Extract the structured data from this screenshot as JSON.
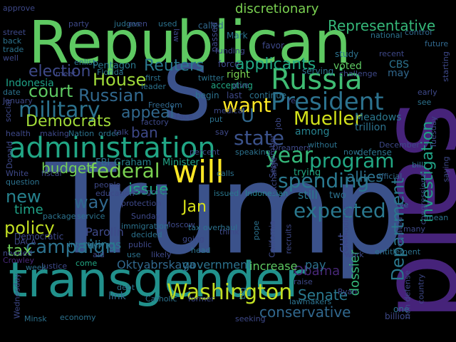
{
  "word_cloud": {
    "background": "#000000",
    "words": [
      {
        "text": "said",
        "color": "#46237a"
      },
      {
        "text": "Trump",
        "color": "#3b528b"
      },
      {
        "text": "Republican",
        "color": "#5ec962"
      },
      {
        "text": "transgender",
        "color": "#21918c"
      },
      {
        "text": "S",
        "color": "#3b528b"
      },
      {
        "text": "will",
        "color": "#fde725"
      },
      {
        "text": "administration",
        "color": "#21a685"
      },
      {
        "text": "Russia",
        "color": "#3fbc73"
      },
      {
        "text": "President",
        "color": "#2c728e"
      },
      {
        "text": "Washington",
        "color": "#c2df23"
      },
      {
        "text": "Department",
        "color": "#2a788e"
      },
      {
        "text": "investigation",
        "color": "#20a386"
      },
      {
        "text": "Representative",
        "color": "#35b779"
      },
      {
        "text": "military",
        "color": "#2c728e"
      },
      {
        "text": "federal",
        "color": "#7ad151"
      },
      {
        "text": "Mueller",
        "color": "#d2e21b"
      },
      {
        "text": "program",
        "color": "#22a884"
      },
      {
        "text": "want",
        "color": "#fde725"
      },
      {
        "text": "state",
        "color": "#3b528b"
      },
      {
        "text": "year",
        "color": "#35b779"
      },
      {
        "text": "spending",
        "color": "#2a788e"
      },
      {
        "text": "campaign",
        "color": "#2c728e"
      },
      {
        "text": "conservative",
        "color": "#31688e"
      },
      {
        "text": "Reuters",
        "color": "#2a788e"
      },
      {
        "text": "House",
        "color": "#a0da39"
      },
      {
        "text": "Russian",
        "color": "#31688e"
      },
      {
        "text": "court",
        "color": "#5ec962"
      },
      {
        "text": "Democrats",
        "color": "#a0da39"
      },
      {
        "text": "appeal",
        "color": "#31688e"
      },
      {
        "text": "election",
        "color": "#3e4989"
      },
      {
        "text": "budget",
        "color": "#73d056"
      },
      {
        "text": "expected",
        "color": "#2a788e"
      },
      {
        "text": "policy",
        "color": "#c2df23"
      },
      {
        "text": "new",
        "color": "#26828e"
      },
      {
        "text": "way",
        "color": "#31688e"
      },
      {
        "text": "issue",
        "color": "#22a884"
      },
      {
        "text": "Jan",
        "color": "#d8e219"
      },
      {
        "text": "tax",
        "color": "#6ece58"
      },
      {
        "text": "Senate",
        "color": "#2a788e"
      },
      {
        "text": "ban",
        "color": "#3e4989"
      },
      {
        "text": "time",
        "color": "#1fa187"
      },
      {
        "text": "applicants",
        "color": "#22a884"
      },
      {
        "text": "U",
        "color": "#31688e"
      },
      {
        "text": "Obama",
        "color": "#482878"
      },
      {
        "text": "dossier",
        "color": "#35b779"
      },
      {
        "text": "cut",
        "color": "#3e4989"
      },
      {
        "text": "Oktyabrskaya",
        "color": "#31688e"
      },
      {
        "text": "government",
        "color": "#2c728e"
      },
      {
        "text": "increase",
        "color": "#5ec962"
      },
      {
        "text": "Indonesia",
        "color": "#1fa187"
      },
      {
        "text": "Pentagon",
        "color": "#2a788e"
      },
      {
        "text": "Graham",
        "color": "#26828e"
      },
      {
        "text": "Minister",
        "color": "#20a386"
      },
      {
        "text": "FBI",
        "color": "#2c728e"
      },
      {
        "text": "Parolin",
        "color": "#3e4989"
      },
      {
        "text": "rulings",
        "color": "#2a788e"
      },
      {
        "text": "link",
        "color": "#31688e"
      },
      {
        "text": "pay",
        "color": "#2c728e"
      },
      {
        "text": "still",
        "color": "#2a788e"
      },
      {
        "text": "two",
        "color": "#2c728e"
      },
      {
        "text": "trying",
        "color": "#22a884"
      },
      {
        "text": "allies",
        "color": "#2c728e"
      },
      {
        "text": "among",
        "color": "#26828e"
      },
      {
        "text": "trillion",
        "color": "#2c728e"
      },
      {
        "text": "Meadows",
        "color": "#2a788e"
      },
      {
        "text": "Democratic",
        "color": "#3e4989"
      },
      {
        "text": "discretionary",
        "color": "#7ad151"
      },
      {
        "text": "voted",
        "color": "#5ec962"
      },
      {
        "text": "CBS",
        "color": "#2c728e"
      },
      {
        "text": "may",
        "color": "#31688e"
      },
      {
        "text": "called",
        "color": "#31688e"
      },
      {
        "text": "favor",
        "color": "#3e4989"
      },
      {
        "text": "Mark",
        "color": "#2c728e"
      },
      {
        "text": "national",
        "color": "#2c728e"
      },
      {
        "text": "control",
        "color": "#31688e"
      },
      {
        "text": "future",
        "color": "#31688e"
      },
      {
        "text": "study",
        "color": "#2c728e"
      },
      {
        "text": "serving",
        "color": "#2c728e"
      },
      {
        "text": "accepting",
        "color": "#22a884"
      },
      {
        "text": "right",
        "color": "#7ad151"
      },
      {
        "text": "last",
        "color": "#3e4989"
      },
      {
        "text": "continue",
        "color": "#2c728e"
      },
      {
        "text": "begin",
        "color": "#2c728e"
      },
      {
        "text": "force",
        "color": "#3e4989"
      },
      {
        "text": "leader",
        "color": "#2c728e"
      },
      {
        "text": "first",
        "color": "#2c728e"
      },
      {
        "text": "Florida",
        "color": "#2c728e"
      },
      {
        "text": "enlist",
        "color": "#2c728e"
      },
      {
        "text": "factory",
        "color": "#3e4989"
      },
      {
        "text": "Freedom",
        "color": "#31688e"
      },
      {
        "text": "Face",
        "color": "#3e4989"
      },
      {
        "text": "put",
        "color": "#2c728e"
      },
      {
        "text": "say",
        "color": "#3e4989"
      },
      {
        "text": "speaking",
        "color": "#2c728e"
      },
      {
        "text": "calls",
        "color": "#2c728e"
      },
      {
        "text": "issued",
        "color": "#2a788e"
      },
      {
        "text": "Indonesian",
        "color": "#26828e"
      },
      {
        "text": "Sunday",
        "color": "#3e4989"
      },
      {
        "text": "Moscow",
        "color": "#3e4989"
      },
      {
        "text": "decided",
        "color": "#2c728e"
      },
      {
        "text": "aid",
        "color": "#3e4989"
      },
      {
        "text": "come",
        "color": "#22a884"
      },
      {
        "text": "interview",
        "color": "#2c728e"
      },
      {
        "text": "Catholic",
        "color": "#2c728e"
      },
      {
        "text": "former",
        "color": "#3e4989"
      },
      {
        "text": "debt",
        "color": "#2c728e"
      },
      {
        "text": "Justice",
        "color": "#3e4989"
      },
      {
        "text": "Minsk",
        "color": "#2c728e"
      },
      {
        "text": "economy",
        "color": "#2c728e"
      },
      {
        "text": "seeking",
        "color": "#3e4989"
      },
      {
        "text": "week",
        "color": "#2c728e"
      },
      {
        "text": "work",
        "color": "#3e4989"
      },
      {
        "text": "entitlement",
        "color": "#2c728e"
      },
      {
        "text": "lawmakers",
        "color": "#2c728e"
      },
      {
        "text": "one",
        "color": "#2c728e"
      },
      {
        "text": "billion",
        "color": "#3e4989"
      },
      {
        "text": "defense",
        "color": "#2c728e"
      },
      {
        "text": "December",
        "color": "#3e4989"
      },
      {
        "text": "Dreamers",
        "color": "#3e4989"
      },
      {
        "text": "without",
        "color": "#2c728e"
      },
      {
        "text": "now",
        "color": "#2c728e"
      },
      {
        "text": "official",
        "color": "#31688e"
      },
      {
        "text": "bill",
        "color": "#2c728e"
      },
      {
        "text": "mean",
        "color": "#2c728e"
      },
      {
        "text": "congressional",
        "color": "#3e4989"
      },
      {
        "text": "saying",
        "color": "#3e4989"
      },
      {
        "text": "commodities",
        "color": "#3e4989"
      },
      {
        "text": "recruits",
        "color": "#3e4989"
      },
      {
        "text": "raise",
        "color": "#3e4989"
      },
      {
        "text": "Ryan",
        "color": "#3e4989"
      },
      {
        "text": "non defense",
        "color": "#3e4989"
      },
      {
        "text": "country",
        "color": "#3e4989"
      },
      {
        "text": "party",
        "color": "#3e4989"
      },
      {
        "text": "judges",
        "color": "#2c728e"
      },
      {
        "text": "even",
        "color": "#3e4989"
      },
      {
        "text": "used",
        "color": "#2c728e"
      },
      {
        "text": "street",
        "color": "#3e4989"
      },
      {
        "text": "back",
        "color": "#2c728e"
      },
      {
        "text": "trade",
        "color": "#2c728e"
      },
      {
        "text": "well",
        "color": "#3e4989"
      },
      {
        "text": "date",
        "color": "#2c728e"
      },
      {
        "text": "health",
        "color": "#3e4989"
      },
      {
        "text": "making",
        "color": "#3e4989"
      },
      {
        "text": "Nation",
        "color": "#2c728e"
      },
      {
        "text": "order",
        "color": "#2c728e"
      },
      {
        "text": "question",
        "color": "#2c728e"
      },
      {
        "text": "fiscal",
        "color": "#3e4989"
      },
      {
        "text": "White",
        "color": "#3e4989"
      },
      {
        "text": "needed",
        "color": "#3e4989"
      },
      {
        "text": "Crowley",
        "color": "#482878"
      },
      {
        "text": "DACA",
        "color": "#3e4989"
      },
      {
        "text": "package",
        "color": "#2c728e"
      },
      {
        "text": "service",
        "color": "#2c728e"
      },
      {
        "text": "people",
        "color": "#3e4989"
      },
      {
        "text": "education",
        "color": "#3e4989"
      },
      {
        "text": "protection",
        "color": "#3e4989"
      },
      {
        "text": "Congress",
        "color": "#3e4989"
      },
      {
        "text": "immigration",
        "color": "#2c728e"
      },
      {
        "text": "public",
        "color": "#3e4989"
      },
      {
        "text": "use",
        "color": "#2c728e"
      },
      {
        "text": "likely",
        "color": "#3e4989"
      },
      {
        "text": "going",
        "color": "#3e4989"
      },
      {
        "text": "head",
        "color": "#2c728e"
      },
      {
        "text": "tax overhaul",
        "color": "#2c728e"
      },
      {
        "text": "think",
        "color": "#3e4989"
      },
      {
        "text": "California",
        "color": "#3e4989"
      },
      {
        "text": "pope",
        "color": "#2c728e"
      },
      {
        "text": "early",
        "color": "#3e4989"
      },
      {
        "text": "see",
        "color": "#2c728e"
      },
      {
        "text": "recent",
        "color": "#3e4989"
      },
      {
        "text": "challenge",
        "color": "#3e4989"
      },
      {
        "text": "starting",
        "color": "#3e4989"
      },
      {
        "text": "Tuesday",
        "color": "#3e4989"
      },
      {
        "text": "January",
        "color": "#3e4989"
      },
      {
        "text": "approve",
        "color": "#3e4989"
      },
      {
        "text": "Donald",
        "color": "#3e4989"
      },
      {
        "text": "social",
        "color": "#3e4989"
      },
      {
        "text": "twitter",
        "color": "#2c728e"
      },
      {
        "text": "funding",
        "color": "#3e4989"
      },
      {
        "text": "law",
        "color": "#3e4989"
      },
      {
        "text": "passed",
        "color": "#3e4989"
      },
      {
        "text": "meet",
        "color": "#3e4989"
      },
      {
        "text": "percent",
        "color": "#3e4989"
      },
      {
        "text": "medical",
        "color": "#3e4989"
      },
      {
        "text": "job",
        "color": "#3e4989"
      },
      {
        "text": "September",
        "color": "#3e4989"
      },
      {
        "text": "exchange",
        "color": "#3e4989"
      },
      {
        "text": "created",
        "color": "#3e4989"
      },
      {
        "text": "Wednesday",
        "color": "#3e4989"
      },
      {
        "text": "big",
        "color": "#2c728e"
      },
      {
        "text": "ve",
        "color": "#2c728e"
      },
      {
        "text": "many",
        "color": "#3e4989"
      },
      {
        "text": "give",
        "color": "#3e4989"
      },
      {
        "text": "re",
        "color": "#3e4989"
      },
      {
        "text": "talk",
        "color": "#3e4989"
      }
    ]
  }
}
